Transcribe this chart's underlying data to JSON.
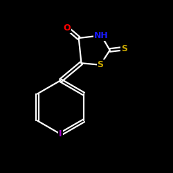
{
  "bg_color": "#000000",
  "atom_colors": {
    "O": "#ff0000",
    "N": "#1a1aff",
    "S": "#ccaa00",
    "I": "#aa00cc",
    "C": "#ffffff"
  },
  "bond_color": "#ffffff",
  "bond_width": 1.6,
  "figsize": [
    2.5,
    2.5
  ],
  "dpi": 100,
  "xlim": [
    0,
    10
  ],
  "ylim": [
    0,
    10
  ]
}
